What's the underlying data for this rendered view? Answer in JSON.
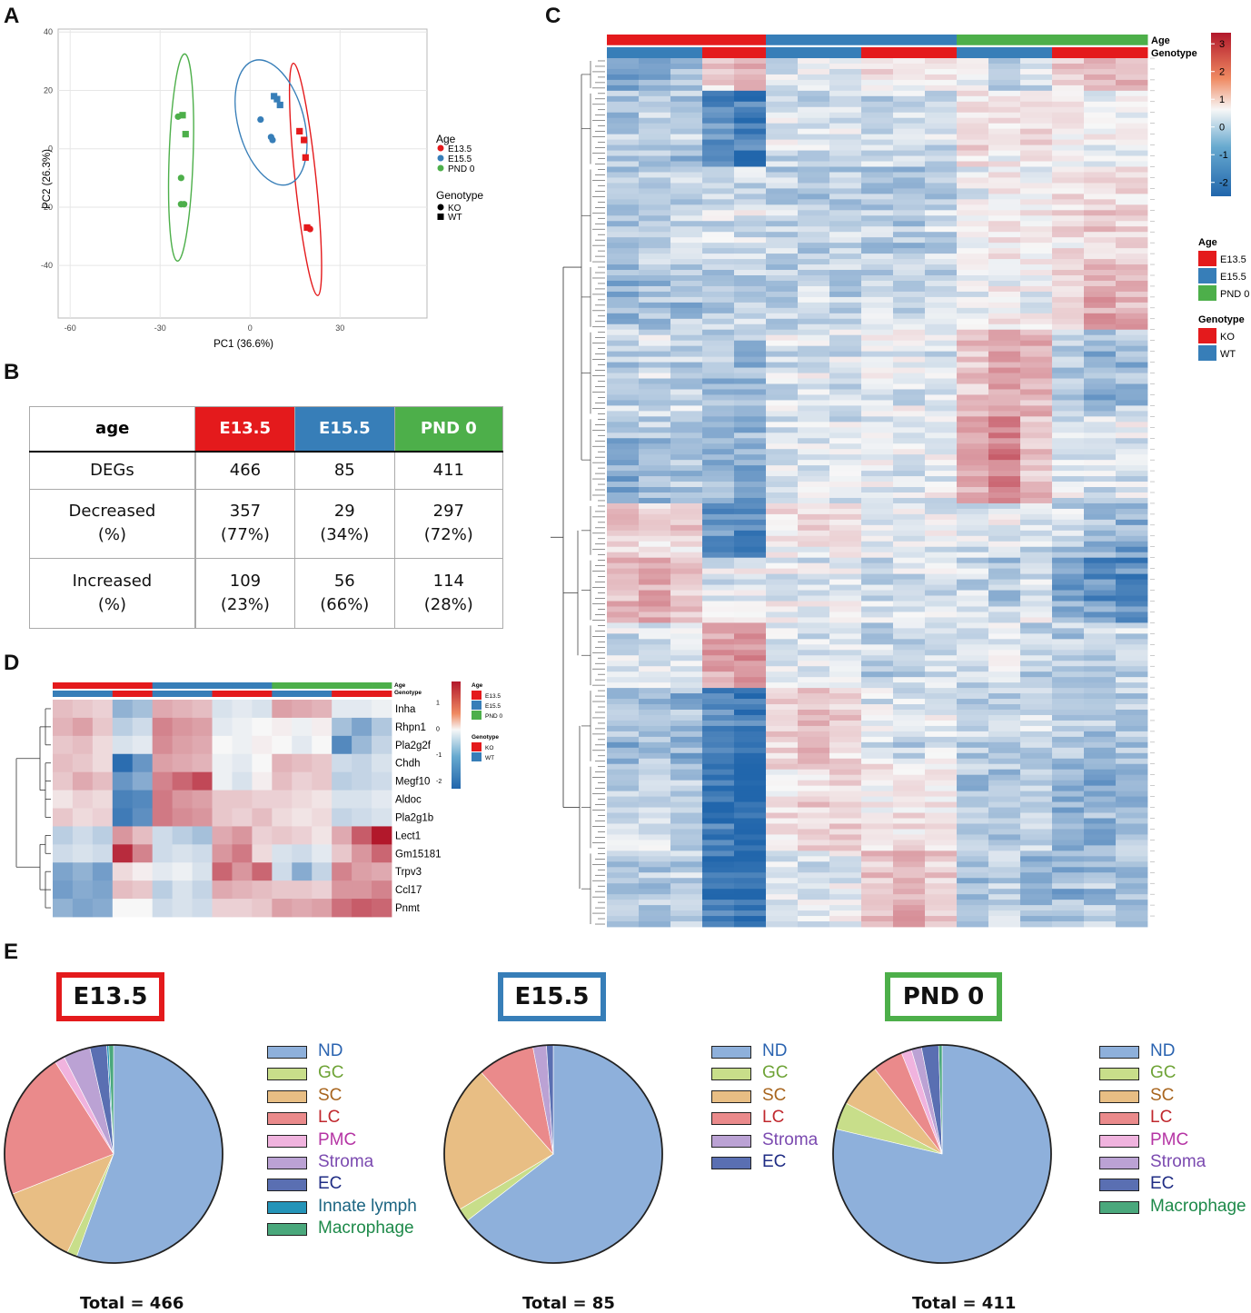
{
  "colors": {
    "e135": "#e41a1c",
    "e155": "#377eb8",
    "pnd0": "#4daf4a",
    "heat_low": "#2166ac",
    "heat_mid": "#f7f7f7",
    "heat_high": "#b2182b"
  },
  "panels": {
    "a": "A",
    "b": "B",
    "c": "C",
    "d": "D",
    "e": "E"
  },
  "pca": {
    "x_ticks": [
      "-60",
      "-30",
      "0",
      "30"
    ],
    "y_ticks": [
      "40",
      "20",
      "0",
      "-20",
      "-40"
    ],
    "xlabel": "PC1 (36.6%)",
    "ylabel": "PC2 (26.3%)",
    "legend_age_title": "Age",
    "legend_age": [
      "E13.5",
      "E15.5",
      "PND 0"
    ],
    "legend_genotype_title": "Genotype",
    "legend_genotype": [
      "KO",
      "WT"
    ],
    "chart_data": {
      "type": "scatter",
      "xlabel": "PC1 (36.6%)",
      "ylabel": "PC2 (26.3%)",
      "xlim": [
        -64,
        59
      ],
      "ylim": [
        -58,
        41
      ],
      "series": [
        {
          "name": "E13.5",
          "points": [
            [
              16.5,
              6,
              "WT"
            ],
            [
              18,
              3,
              "WT"
            ],
            [
              18.5,
              -3,
              "WT"
            ],
            [
              19,
              -27,
              "WT"
            ],
            [
              20,
              -27.5,
              "KO"
            ]
          ],
          "ellipse": {
            "cx": 18.5,
            "cy": -10.5,
            "rx": 3.5,
            "ry": 40,
            "angle": -6
          }
        },
        {
          "name": "E15.5",
          "points": [
            [
              3.5,
              10,
              "KO"
            ],
            [
              7,
              4,
              "KO"
            ],
            [
              7.5,
              3,
              "KO"
            ],
            [
              8,
              18,
              "WT"
            ],
            [
              9,
              17,
              "WT"
            ],
            [
              10,
              15,
              "WT"
            ]
          ],
          "ellipse": {
            "cx": 7,
            "cy": 9,
            "rx": 11,
            "ry": 22,
            "angle": -15
          }
        },
        {
          "name": "PND 0",
          "points": [
            [
              -24,
              11,
              "KO"
            ],
            [
              -22.5,
              11.5,
              "WT"
            ],
            [
              -21.5,
              5,
              "WT"
            ],
            [
              -23,
              -10,
              "KO"
            ],
            [
              -23,
              -19,
              "KO"
            ],
            [
              -22,
              -19,
              "KO"
            ]
          ],
          "ellipse": {
            "cx": -23,
            "cy": -3,
            "rx": 4,
            "ry": 35.5,
            "angle": 2
          }
        }
      ]
    }
  },
  "table": {
    "header": {
      "age": "age",
      "e135": "E13.5",
      "e155": "E15.5",
      "pnd0": "PND 0"
    },
    "rows": [
      {
        "label": "DEGs",
        "e135": "466",
        "e155": "85",
        "pnd0": "411"
      },
      {
        "label": "Decreased\n(%)",
        "e135": "357\n(77%)",
        "e155": "29\n(34%)",
        "pnd0": "297\n(72%)"
      },
      {
        "label": "Increased\n(%)",
        "e135": "109\n(23%)",
        "e155": "56\n(66%)",
        "pnd0": "114\n(28%)"
      }
    ]
  },
  "heatmap_c": {
    "annotation_age": "Age",
    "annotation_genotype": "Genotype",
    "scale_ticks": [
      "3",
      "2",
      "1",
      "0",
      "-1",
      "-2"
    ],
    "legend_age_title": "Age",
    "legend_age": [
      "E13.5",
      "E15.5",
      "PND 0"
    ],
    "legend_genotype_title": "Genotype",
    "legend_genotype": [
      "KO",
      "WT"
    ],
    "column_age": [
      "E13.5",
      "E13.5",
      "E13.5",
      "E13.5",
      "E13.5",
      "E15.5",
      "E15.5",
      "E15.5",
      "E15.5",
      "E15.5",
      "E15.5",
      "PND 0",
      "PND 0",
      "PND 0",
      "PND 0",
      "PND 0",
      "PND 0"
    ],
    "column_genotype": [
      "WT",
      "WT",
      "WT",
      "KO",
      "KO",
      "WT",
      "WT",
      "WT",
      "KO",
      "KO",
      "KO",
      "WT",
      "WT",
      "WT",
      "KO",
      "KO",
      "KO"
    ]
  },
  "heatmap_d": {
    "annotation_age": "Age",
    "annotation_genotype": "Genotype",
    "scale_ticks": [
      "1",
      "0",
      "-1",
      "-2"
    ],
    "legend_age_title": "Age",
    "legend_age": [
      "E13.5",
      "E15.5",
      "PND 0"
    ],
    "legend_genotype_title": "Genotype",
    "legend_genotype": [
      "KO",
      "WT"
    ],
    "chart_data": {
      "type": "heatmap",
      "columns_age": [
        "E13.5",
        "E13.5",
        "E13.5",
        "E13.5",
        "E13.5",
        "E15.5",
        "E15.5",
        "E15.5",
        "E15.5",
        "E15.5",
        "E15.5",
        "PND 0",
        "PND 0",
        "PND 0",
        "PND 0",
        "PND 0",
        "PND 0"
      ],
      "columns_genotype": [
        "WT",
        "WT",
        "WT",
        "KO",
        "KO",
        "WT",
        "WT",
        "WT",
        "KO",
        "KO",
        "KO",
        "WT",
        "WT",
        "WT",
        "KO",
        "KO",
        "KO"
      ],
      "genes": [
        "Inha",
        "Rhpn1",
        "Pla2g2f",
        "Chdh",
        "Megf10",
        "Aldoc",
        "Pla2g1b",
        "Lect1",
        "Gm15181",
        "Trpv3",
        "Ccl17",
        "Pnmt"
      ],
      "values": [
        [
          0.6,
          0.5,
          0.4,
          -1.0,
          -0.8,
          0.8,
          0.7,
          0.6,
          -0.3,
          -0.2,
          -0.3,
          0.9,
          0.8,
          0.7,
          -0.2,
          -0.2,
          -0.1
        ],
        [
          0.7,
          0.9,
          0.5,
          -0.6,
          -0.4,
          1.2,
          1.0,
          0.9,
          -0.2,
          -0.1,
          0.0,
          0.1,
          -0.1,
          0.1,
          -0.8,
          -1.2,
          -0.7
        ],
        [
          0.5,
          0.6,
          0.3,
          -0.3,
          -0.2,
          1.1,
          0.9,
          0.8,
          0.0,
          -0.1,
          0.1,
          0.0,
          -0.2,
          0.0,
          -1.6,
          -0.9,
          -0.5
        ],
        [
          0.6,
          0.5,
          0.3,
          -2.0,
          -1.4,
          0.9,
          0.8,
          0.7,
          -0.1,
          -0.2,
          0.0,
          0.7,
          0.6,
          0.5,
          -0.4,
          -0.5,
          -0.3
        ],
        [
          0.5,
          0.8,
          0.6,
          -1.4,
          -1.1,
          1.2,
          1.5,
          1.8,
          -0.1,
          -0.3,
          0.1,
          0.6,
          0.4,
          0.5,
          -0.6,
          -0.5,
          -0.4
        ],
        [
          0.2,
          0.4,
          0.3,
          -1.7,
          -1.6,
          1.3,
          1.0,
          0.9,
          0.5,
          0.5,
          0.4,
          0.4,
          0.3,
          0.2,
          -0.3,
          -0.3,
          -0.2
        ],
        [
          0.5,
          0.3,
          0.4,
          -1.8,
          -1.5,
          1.3,
          1.1,
          1.0,
          0.5,
          0.4,
          0.6,
          0.3,
          0.2,
          0.3,
          -0.5,
          -0.4,
          -0.3
        ],
        [
          -0.6,
          -0.4,
          -0.6,
          1.0,
          0.6,
          -0.4,
          -0.6,
          -0.8,
          0.8,
          1.0,
          0.4,
          0.5,
          0.4,
          0.2,
          0.8,
          1.6,
          2.3
        ],
        [
          -0.4,
          -0.3,
          -0.4,
          2.1,
          1.2,
          -0.4,
          -0.3,
          -0.4,
          1.0,
          1.3,
          0.3,
          -0.3,
          -0.4,
          -0.2,
          0.5,
          1.0,
          1.5
        ],
        [
          -1.2,
          -1.0,
          -1.3,
          0.3,
          0.1,
          -0.2,
          -0.1,
          -0.3,
          1.5,
          1.0,
          1.5,
          -0.4,
          -1.1,
          -0.5,
          1.2,
          0.9,
          0.8
        ],
        [
          -1.3,
          -1.1,
          -1.2,
          0.6,
          0.5,
          -0.6,
          -0.3,
          -0.5,
          0.8,
          0.7,
          0.6,
          0.5,
          0.5,
          0.4,
          1.0,
          1.0,
          1.2
        ],
        [
          -1.0,
          -1.2,
          -1.1,
          0.0,
          0.0,
          -0.4,
          -0.3,
          -0.4,
          0.4,
          0.4,
          0.5,
          0.9,
          0.8,
          0.9,
          1.4,
          1.6,
          1.5
        ]
      ]
    }
  },
  "pies": [
    {
      "title": "E13.5",
      "total": "Total = 466",
      "legend": [
        "ND",
        "GC",
        "SC",
        "LC",
        "PMC",
        "Stroma",
        "EC",
        "Innate lymph",
        "Macrophage"
      ],
      "legend_colors": [
        "#8eb0db",
        "#c8de8a",
        "#e8be84",
        "#ea8a8b",
        "#f0b3de",
        "#bba2d4",
        "#5a6fb2",
        "#2494b8",
        "#4aa87c"
      ],
      "text_colors": [
        "#2a63b0",
        "#6ea336",
        "#a8651e",
        "#c0282e",
        "#b534a4",
        "#7b4ab0",
        "#1f2c84",
        "#1c6582",
        "#1e8a4a"
      ],
      "chart_data": {
        "type": "pie",
        "labels": [
          "ND",
          "GC",
          "SC",
          "LC",
          "PMC",
          "Stroma",
          "EC",
          "Innate lymph",
          "Macrophage"
        ],
        "values": [
          55.5,
          1.5,
          12,
          22,
          1.5,
          4,
          2.5,
          0.3,
          0.7
        ]
      }
    },
    {
      "title": "E15.5",
      "total": "Total = 85",
      "legend": [
        "ND",
        "GC",
        "SC",
        "LC",
        "Stroma",
        "EC"
      ],
      "legend_colors": [
        "#8eb0db",
        "#c8de8a",
        "#e8be84",
        "#ea8a8b",
        "#bba2d4",
        "#5a6fb2"
      ],
      "text_colors": [
        "#2a63b0",
        "#6ea336",
        "#a8651e",
        "#c0282e",
        "#7b4ab0",
        "#1f2c84"
      ],
      "chart_data": {
        "type": "pie",
        "labels": [
          "ND",
          "GC",
          "SC",
          "LC",
          "Stroma",
          "EC"
        ],
        "values": [
          64.5,
          2,
          22,
          8.5,
          2,
          1
        ]
      }
    },
    {
      "title": "PND 0",
      "total": "Total = 411",
      "legend": [
        "ND",
        "GC",
        "SC",
        "LC",
        "PMC",
        "Stroma",
        "EC",
        "Macrophage"
      ],
      "legend_colors": [
        "#8eb0db",
        "#c8de8a",
        "#e8be84",
        "#ea8a8b",
        "#f0b3de",
        "#bba2d4",
        "#5a6fb2",
        "#4aa87c"
      ],
      "text_colors": [
        "#2a63b0",
        "#6ea336",
        "#a8651e",
        "#c0282e",
        "#b534a4",
        "#7b4ab0",
        "#1f2c84",
        "#1e8a4a"
      ],
      "chart_data": {
        "type": "pie",
        "labels": [
          "ND",
          "GC",
          "SC",
          "LC",
          "PMC",
          "Stroma",
          "EC",
          "Macrophage"
        ],
        "values": [
          77.5,
          4,
          6.5,
          4.5,
          1.5,
          1.5,
          2.5,
          0.5
        ]
      }
    }
  ]
}
